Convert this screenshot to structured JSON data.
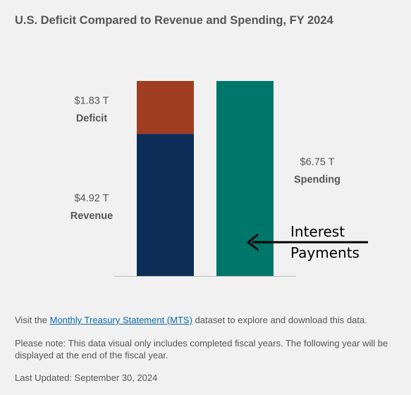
{
  "chart_data": {
    "type": "bar",
    "title": "U.S. Deficit Compared to Revenue and Spending, FY 2024",
    "ylim": [
      0,
      6.75
    ],
    "stacks": [
      {
        "segments": [
          {
            "name": "Revenue",
            "value": 4.92,
            "value_label": "$4.92 T",
            "color": "#0c2d57"
          },
          {
            "name": "Deficit",
            "value": 1.83,
            "value_label": "$1.83 T",
            "color": "#a03e22"
          }
        ]
      },
      {
        "segments": [
          {
            "name": "Spending",
            "value": 6.75,
            "value_label": "$6.75 T",
            "color": "#00766b"
          }
        ]
      }
    ],
    "annotation": "Interest Payments"
  },
  "footer": {
    "visit_prefix": "Visit the ",
    "link_text": "Monthly Treasury Statement (MTS)",
    "visit_suffix": " dataset to explore and download this data.",
    "note": "Please note: This data visual only includes completed fiscal years. The following year will be displayed at the end of the fiscal year.",
    "last_updated": "Last Updated: September 30, 2024"
  }
}
